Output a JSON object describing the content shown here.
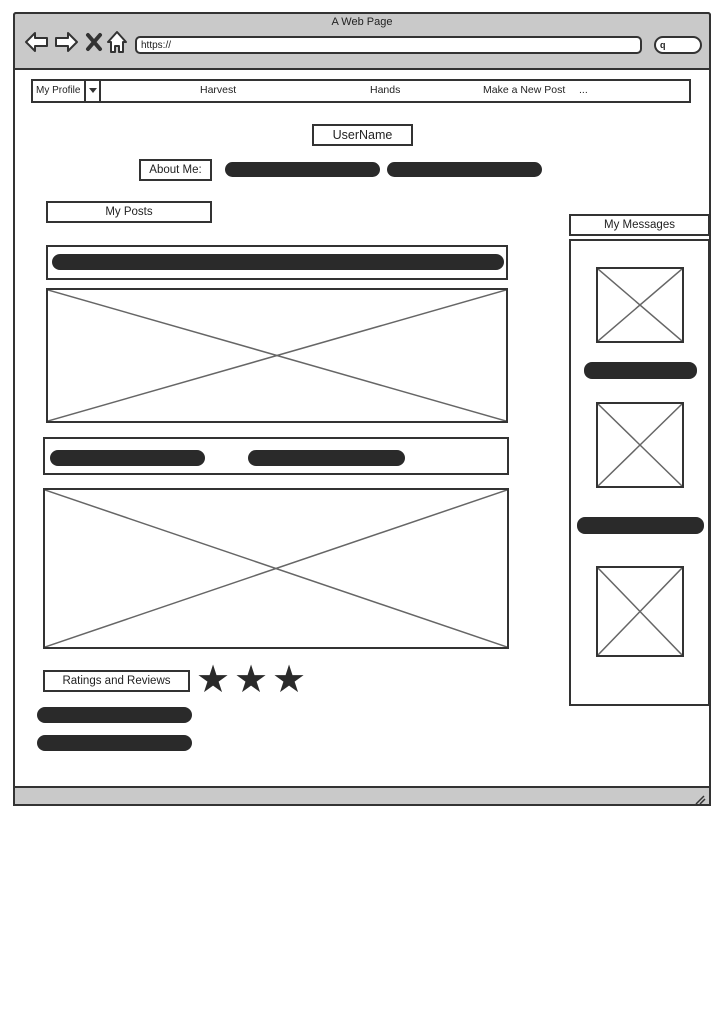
{
  "browser": {
    "window_title": "A Web Page",
    "address": "https://",
    "search_icon_glyph": "q",
    "nav_icons": [
      "back-arrow-icon",
      "forward-arrow-icon",
      "close-x-icon",
      "home-icon"
    ]
  },
  "menu": {
    "profile_label": "My Profile",
    "items": [
      "Harvest",
      "Hands",
      "Make a New Post",
      "..."
    ]
  },
  "profile": {
    "username": "UserName",
    "about_label": "About Me:"
  },
  "posts": {
    "header": "My Posts"
  },
  "messages": {
    "header": "My Messages"
  },
  "ratings": {
    "header": "Ratings and Reviews",
    "stars": 3,
    "star_glyph": "★"
  }
}
